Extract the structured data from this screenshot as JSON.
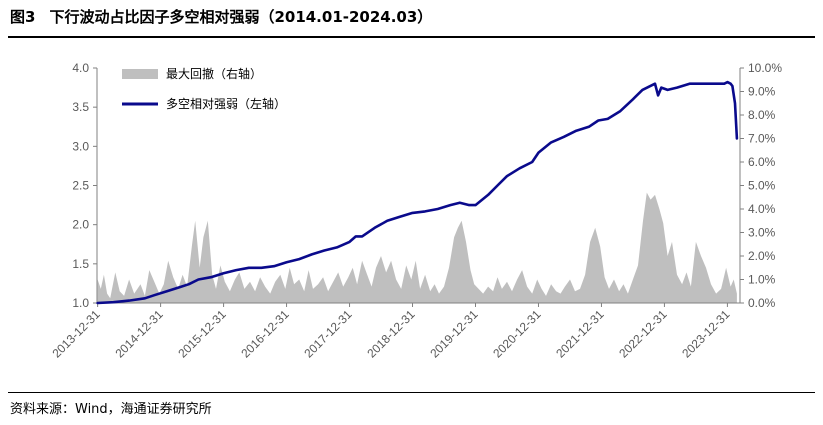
{
  "header": {
    "figure_no": "图3",
    "title": "下行波动占比因子多空相对强弱（2014.01-2024.03）"
  },
  "footer": {
    "source": "资料来源：Wind，海通证券研究所"
  },
  "colors": {
    "line": "#0a0a8c",
    "area": "#bfbfbf",
    "axis": "#808080",
    "tick": "#595959"
  },
  "chart_data": {
    "type": "line+area",
    "x_axis": {
      "tick_labels": [
        "2013-12-31",
        "2014-12-31",
        "2015-12-31",
        "2016-12-31",
        "2017-12-31",
        "2018-12-31",
        "2019-12-31",
        "2020-12-31",
        "2021-12-31",
        "2022-12-31",
        "2023-12-31"
      ],
      "range": [
        2013.99,
        2024.2
      ]
    },
    "y_left": {
      "range": [
        1.0,
        4.0
      ],
      "tick_labels": [
        "1.0",
        "1.5",
        "2.0",
        "2.5",
        "3.0",
        "3.5",
        "4.0"
      ]
    },
    "y_right": {
      "range": [
        0,
        10
      ],
      "tick_labels": [
        "0.0%",
        "1.0%",
        "2.0%",
        "3.0%",
        "4.0%",
        "5.0%",
        "6.0%",
        "7.0%",
        "8.0%",
        "9.0%",
        "10.0%"
      ]
    },
    "legend": {
      "position": "top-left",
      "entries": [
        "最大回撤（右轴）",
        "多空相对强弱（左轴）"
      ]
    },
    "series": [
      {
        "name": "多空相对强弱（左轴）",
        "axis": "left",
        "style": "line",
        "x": [
          2014.0,
          2014.25,
          2014.5,
          2014.75,
          2014.9,
          2015.1,
          2015.3,
          2015.45,
          2015.6,
          2015.8,
          2016.0,
          2016.2,
          2016.4,
          2016.6,
          2016.8,
          2017.0,
          2017.2,
          2017.4,
          2017.6,
          2017.8,
          2018.0,
          2018.1,
          2018.2,
          2018.4,
          2018.6,
          2018.8,
          2019.0,
          2019.2,
          2019.4,
          2019.6,
          2019.75,
          2019.9,
          2020.0,
          2020.2,
          2020.35,
          2020.5,
          2020.7,
          2020.9,
          2021.0,
          2021.2,
          2021.4,
          2021.6,
          2021.8,
          2021.95,
          2022.1,
          2022.3,
          2022.5,
          2022.65,
          2022.85,
          2022.9,
          2022.95,
          2023.05,
          2023.2,
          2023.4,
          2023.6,
          2023.8,
          2023.95,
          2024.0,
          2024.05,
          2024.08,
          2024.12,
          2024.15
        ],
        "y": [
          1.0,
          1.01,
          1.03,
          1.06,
          1.1,
          1.15,
          1.2,
          1.24,
          1.3,
          1.33,
          1.38,
          1.42,
          1.45,
          1.45,
          1.47,
          1.52,
          1.56,
          1.62,
          1.67,
          1.71,
          1.78,
          1.85,
          1.85,
          1.96,
          2.05,
          2.1,
          2.15,
          2.17,
          2.2,
          2.25,
          2.28,
          2.25,
          2.25,
          2.38,
          2.5,
          2.62,
          2.72,
          2.8,
          2.92,
          3.05,
          3.12,
          3.2,
          3.25,
          3.33,
          3.35,
          3.45,
          3.6,
          3.72,
          3.8,
          3.65,
          3.75,
          3.72,
          3.75,
          3.8,
          3.8,
          3.8,
          3.8,
          3.82,
          3.8,
          3.77,
          3.55,
          3.1
        ]
      },
      {
        "name": "最大回撤（右轴）",
        "axis": "right",
        "style": "area",
        "x": [
          2014.0,
          2014.05,
          2014.1,
          2014.15,
          2014.2,
          2014.28,
          2014.35,
          2014.42,
          2014.5,
          2014.58,
          2014.68,
          2014.75,
          2014.82,
          2014.9,
          2014.98,
          2015.05,
          2015.12,
          2015.2,
          2015.28,
          2015.35,
          2015.42,
          2015.5,
          2015.55,
          2015.62,
          2015.68,
          2015.75,
          2015.82,
          2015.88,
          2015.95,
          2016.02,
          2016.1,
          2016.18,
          2016.25,
          2016.33,
          2016.42,
          2016.5,
          2016.58,
          2016.66,
          2016.74,
          2016.82,
          2016.9,
          2016.98,
          2017.05,
          2017.12,
          2017.2,
          2017.28,
          2017.35,
          2017.42,
          2017.5,
          2017.58,
          2017.66,
          2017.74,
          2017.82,
          2017.9,
          2017.98,
          2018.05,
          2018.12,
          2018.2,
          2018.28,
          2018.35,
          2018.42,
          2018.5,
          2018.58,
          2018.66,
          2018.74,
          2018.82,
          2018.9,
          2018.98,
          2019.05,
          2019.12,
          2019.2,
          2019.28,
          2019.35,
          2019.42,
          2019.5,
          2019.58,
          2019.66,
          2019.72,
          2019.78,
          2019.85,
          2019.92,
          2019.98,
          2020.05,
          2020.12,
          2020.2,
          2020.28,
          2020.35,
          2020.42,
          2020.5,
          2020.58,
          2020.66,
          2020.74,
          2020.82,
          2020.9,
          2020.98,
          2021.05,
          2021.12,
          2021.2,
          2021.28,
          2021.35,
          2021.42,
          2021.5,
          2021.58,
          2021.66,
          2021.74,
          2021.82,
          2021.9,
          2021.98,
          2022.05,
          2022.12,
          2022.2,
          2022.28,
          2022.35,
          2022.42,
          2022.5,
          2022.58,
          2022.66,
          2022.72,
          2022.78,
          2022.85,
          2022.92,
          2022.98,
          2023.05,
          2023.12,
          2023.2,
          2023.28,
          2023.35,
          2023.42,
          2023.5,
          2023.58,
          2023.66,
          2023.74,
          2023.82,
          2023.9,
          2023.98,
          2024.05,
          2024.1,
          2024.15
        ],
        "y": [
          1.0,
          0.6,
          1.2,
          0.4,
          0.2,
          1.3,
          0.5,
          0.3,
          1.0,
          0.4,
          0.8,
          0.3,
          1.4,
          0.9,
          0.4,
          0.8,
          1.8,
          1.1,
          0.6,
          1.2,
          0.7,
          2.5,
          3.5,
          1.5,
          2.8,
          3.5,
          1.2,
          0.6,
          1.6,
          0.9,
          0.5,
          1.0,
          1.3,
          0.6,
          0.9,
          0.5,
          1.1,
          0.7,
          0.4,
          0.9,
          1.2,
          0.6,
          1.5,
          0.8,
          1.0,
          0.5,
          1.4,
          0.6,
          0.8,
          1.1,
          0.5,
          0.9,
          1.3,
          0.7,
          1.1,
          1.5,
          0.8,
          1.8,
          1.2,
          0.7,
          1.5,
          2.0,
          1.3,
          1.8,
          1.0,
          0.6,
          1.6,
          1.0,
          1.8,
          0.6,
          1.2,
          0.5,
          0.8,
          0.4,
          0.7,
          1.5,
          2.8,
          3.2,
          3.5,
          2.6,
          1.4,
          0.8,
          0.6,
          0.4,
          0.7,
          0.5,
          1.1,
          0.6,
          0.9,
          0.5,
          1.0,
          1.4,
          0.7,
          0.4,
          1.0,
          0.6,
          0.3,
          0.8,
          0.5,
          0.4,
          0.7,
          1.0,
          0.5,
          0.6,
          1.2,
          2.6,
          3.2,
          2.4,
          1.1,
          0.6,
          1.0,
          0.5,
          0.8,
          0.4,
          1.0,
          1.6,
          3.5,
          4.7,
          4.4,
          4.6,
          4.0,
          3.4,
          2.0,
          2.6,
          1.2,
          0.8,
          1.3,
          0.7,
          2.6,
          2.0,
          1.5,
          0.8,
          0.4,
          0.6,
          1.5,
          0.7,
          1.0,
          0.4
        ]
      }
    ]
  }
}
